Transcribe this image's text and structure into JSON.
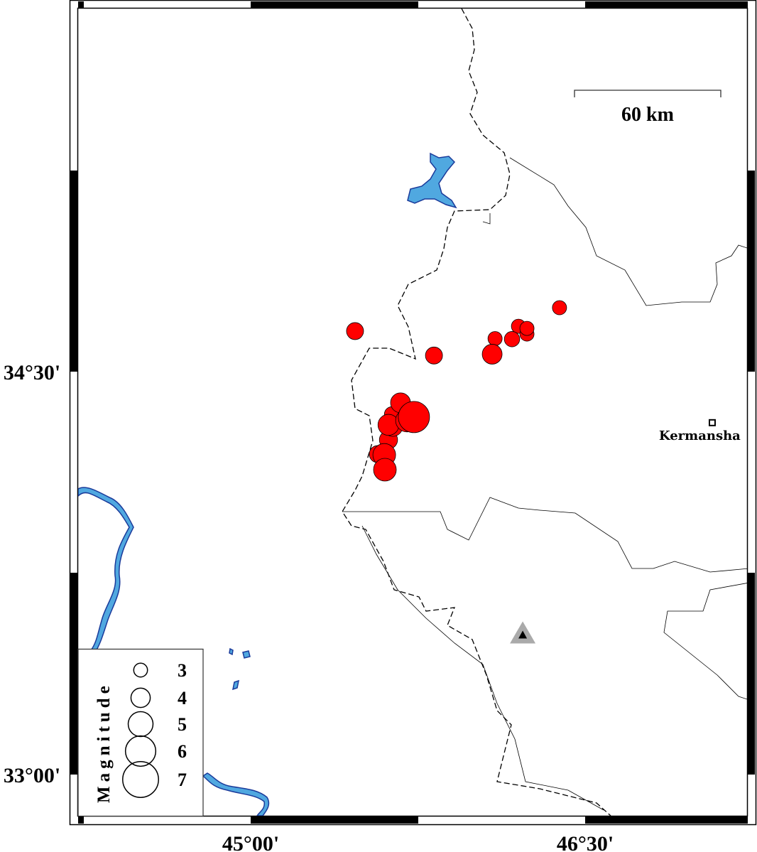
{
  "map": {
    "lat_labels": [
      "34°30'",
      "33°00'"
    ],
    "lon_labels": [
      "45°00'",
      "46°30'"
    ],
    "scale_bar": "60 km",
    "city": {
      "name": "Kermansha",
      "lon": 47.07,
      "lat": 34.31,
      "icon": "square-marker-icon"
    },
    "station": {
      "lon": 46.22,
      "lat": 33.52,
      "icon": "triangle-marker-icon"
    },
    "colors": {
      "event": "#ff0000",
      "water": "#50a8e0",
      "water_outline": "#1a3a9a",
      "station_halo": "#aaaaaa"
    }
  },
  "legend": {
    "title": "Magnitude",
    "entries": [
      {
        "mag": 3,
        "label": "3"
      },
      {
        "mag": 4,
        "label": "4"
      },
      {
        "mag": 5,
        "label": "5"
      },
      {
        "mag": 6,
        "label": "6"
      },
      {
        "mag": 7,
        "label": "7"
      }
    ]
  },
  "events": [
    {
      "lon": 45.468,
      "lat": 34.651,
      "mag": 3.5
    },
    {
      "lon": 45.822,
      "lat": 34.56,
      "mag": 3.5
    },
    {
      "lon": 46.083,
      "lat": 34.565,
      "mag": 4.0
    },
    {
      "lon": 46.096,
      "lat": 34.623,
      "mag": 3.0
    },
    {
      "lon": 46.172,
      "lat": 34.621,
      "mag": 3.2
    },
    {
      "lon": 46.201,
      "lat": 34.669,
      "mag": 3.0
    },
    {
      "lon": 46.239,
      "lat": 34.64,
      "mag": 3.0
    },
    {
      "lon": 46.239,
      "lat": 34.661,
      "mag": 3.0
    },
    {
      "lon": 46.385,
      "lat": 34.738,
      "mag": 3.0
    },
    {
      "lon": 45.672,
      "lat": 34.384,
      "mag": 4.0
    },
    {
      "lon": 45.732,
      "lat": 34.331,
      "mag": 6.0
    },
    {
      "lon": 45.701,
      "lat": 34.318,
      "mag": 4.5
    },
    {
      "lon": 45.634,
      "lat": 34.341,
      "mag": 3.2
    },
    {
      "lon": 45.618,
      "lat": 34.302,
      "mag": 4.2
    },
    {
      "lon": 45.637,
      "lat": 34.296,
      "mag": 4.0
    },
    {
      "lon": 45.618,
      "lat": 34.246,
      "mag": 3.7
    },
    {
      "lon": 45.599,
      "lat": 34.19,
      "mag": 4.5
    },
    {
      "lon": 45.57,
      "lat": 34.193,
      "mag": 3.5
    },
    {
      "lon": 45.602,
      "lat": 34.135,
      "mag": 4.5
    }
  ]
}
